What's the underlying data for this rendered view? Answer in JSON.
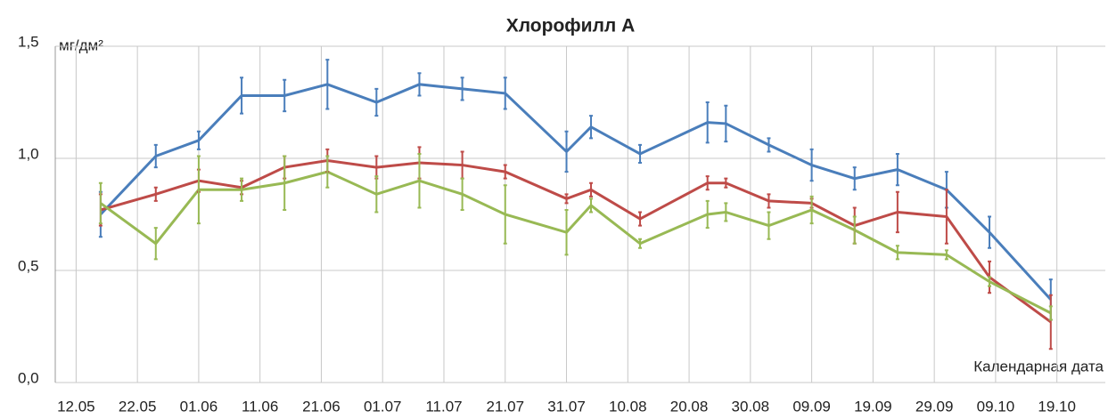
{
  "chart_data": {
    "type": "line",
    "title": "Хлорофилл А",
    "y_label": "мг/дм²",
    "x_label": "Календарная дата",
    "x": [
      4,
      13,
      20,
      27,
      34,
      41,
      49,
      56,
      63,
      70,
      80,
      84,
      92,
      103,
      106,
      113,
      120,
      127,
      134,
      142,
      149,
      159
    ],
    "series": [
      {
        "color": "#4a7ebb",
        "values": [
          0.75,
          1.01,
          1.08,
          1.28,
          1.28,
          1.33,
          1.25,
          1.33,
          1.31,
          1.29,
          1.03,
          1.14,
          1.02,
          1.16,
          1.155,
          1.06,
          0.97,
          0.91,
          0.95,
          0.86,
          0.67,
          0.37
        ],
        "errors": [
          0.1,
          0.05,
          0.04,
          0.08,
          0.07,
          0.11,
          0.06,
          0.05,
          0.05,
          0.07,
          0.09,
          0.05,
          0.04,
          0.09,
          0.08,
          0.03,
          0.07,
          0.05,
          0.07,
          0.08,
          0.07,
          0.09
        ]
      },
      {
        "color": "#be4b48",
        "values": [
          0.77,
          0.84,
          0.9,
          0.87,
          0.96,
          0.99,
          0.96,
          0.98,
          0.97,
          0.94,
          0.82,
          0.86,
          0.73,
          0.89,
          0.89,
          0.81,
          0.8,
          0.7,
          0.76,
          0.74,
          0.47,
          0.27
        ],
        "errors": [
          0.07,
          0.03,
          0.05,
          0.03,
          0.05,
          0.05,
          0.05,
          0.07,
          0.06,
          0.03,
          0.02,
          0.03,
          0.03,
          0.03,
          0.02,
          0.03,
          0.02,
          0.08,
          0.09,
          0.12,
          0.07,
          0.12
        ]
      },
      {
        "color": "#98b954",
        "values": [
          0.8,
          0.62,
          0.86,
          0.86,
          0.89,
          0.94,
          0.84,
          0.9,
          0.84,
          0.75,
          0.67,
          0.79,
          0.62,
          0.75,
          0.76,
          0.7,
          0.77,
          0.68,
          0.58,
          0.57,
          0.45,
          0.31
        ],
        "errors": [
          0.09,
          0.07,
          0.15,
          0.05,
          0.12,
          0.07,
          0.08,
          0.12,
          0.07,
          0.13,
          0.1,
          0.03,
          0.02,
          0.06,
          0.04,
          0.06,
          0.06,
          0.06,
          0.03,
          0.02,
          0.02,
          0.03
        ]
      }
    ],
    "xlim": [
      -3.4,
      167.9
    ],
    "xticks": [
      {
        "value": 0,
        "label": "12.05"
      },
      {
        "value": 10,
        "label": "22.05"
      },
      {
        "value": 20,
        "label": "01.06"
      },
      {
        "value": 30,
        "label": "11.06"
      },
      {
        "value": 40,
        "label": "21.06"
      },
      {
        "value": 50,
        "label": "01.07"
      },
      {
        "value": 60,
        "label": "11.07"
      },
      {
        "value": 70,
        "label": "21.07"
      },
      {
        "value": 80,
        "label": "31.07"
      },
      {
        "value": 90,
        "label": "10.08"
      },
      {
        "value": 100,
        "label": "20.08"
      },
      {
        "value": 110,
        "label": "30.08"
      },
      {
        "value": 120,
        "label": "09.09"
      },
      {
        "value": 130,
        "label": "19.09"
      },
      {
        "value": 140,
        "label": "29.09"
      },
      {
        "value": 150,
        "label": "09.10"
      },
      {
        "value": 160,
        "label": "19.10"
      }
    ],
    "ylim": [
      0,
      1.5
    ],
    "yticks": [
      {
        "value": 0,
        "label": "0,0"
      },
      {
        "value": 0.5,
        "label": "0,5"
      },
      {
        "value": 1,
        "label": "1,0"
      },
      {
        "value": 1.5,
        "label": "1,5"
      }
    ],
    "grid": true
  }
}
